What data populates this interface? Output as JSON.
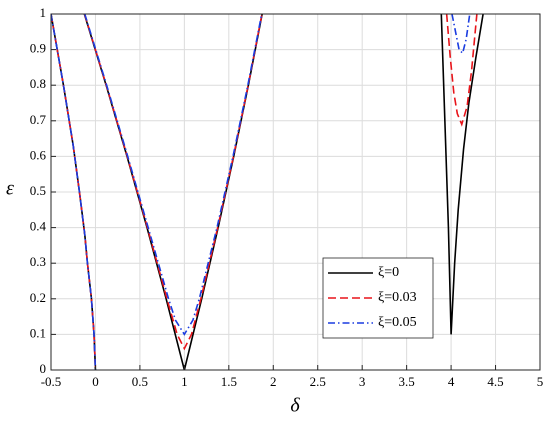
{
  "chart_data": {
    "type": "line",
    "x_label": "δ",
    "y_label": "ε",
    "xlim": [
      -0.5,
      5
    ],
    "ylim": [
      0,
      1
    ],
    "xticks": [
      -0.5,
      0,
      0.5,
      1,
      1.5,
      2,
      2.5,
      3,
      3.5,
      4,
      4.5,
      5
    ],
    "yticks": [
      0,
      0.1,
      0.2,
      0.3,
      0.4,
      0.5,
      0.6,
      0.7,
      0.8,
      0.9,
      1
    ],
    "grid": true,
    "legend": "lower right",
    "series": [
      {
        "name": "ξ=0",
        "color": "#000000",
        "dash": "solid",
        "x": [
          -0.5,
          -0.36,
          -0.25,
          -0.18,
          -0.12,
          -0.09,
          -0.045,
          -0.016,
          0,
          null,
          -0.125,
          0.12,
          0.355,
          0.58,
          0.795,
          1,
          1.195,
          1.38,
          1.555,
          1.72,
          1.875,
          null,
          3.89,
          3.93,
          3.97,
          4,
          4.04,
          4.08,
          4.14,
          4.2,
          4.28,
          4.36
        ],
        "values": [
          1,
          0.8,
          0.63,
          0.5,
          0.38,
          0.3,
          0.2,
          0.1,
          0,
          null,
          1,
          0.8,
          0.6,
          0.4,
          0.2,
          0,
          0.2,
          0.4,
          0.6,
          0.8,
          1,
          null,
          1,
          0.7,
          0.4,
          0.1,
          0.3,
          0.45,
          0.62,
          0.75,
          0.88,
          1
        ]
      },
      {
        "name": "ξ=0.03",
        "color": "#e8141a",
        "dash": "dashed",
        "x": [
          -0.5,
          -0.36,
          -0.25,
          -0.18,
          -0.12,
          -0.09,
          -0.045,
          -0.016,
          0,
          null,
          -0.123,
          0.122,
          0.358,
          0.585,
          0.804,
          0.919,
          1,
          1.08,
          1.186,
          1.375,
          1.552,
          1.718,
          1.873,
          null,
          3.95,
          3.99,
          4.03,
          4.07,
          4.12,
          4.18,
          4.23,
          4.29
        ],
        "values": [
          1,
          0.8,
          0.63,
          0.5,
          0.38,
          0.3,
          0.2,
          0.1,
          0,
          null,
          1,
          0.8,
          0.6,
          0.4,
          0.2,
          0.1,
          0.06,
          0.1,
          0.2,
          0.4,
          0.6,
          0.8,
          1,
          null,
          1,
          0.88,
          0.78,
          0.72,
          0.69,
          0.74,
          0.84,
          1
        ]
      },
      {
        "name": "ξ=0.05",
        "color": "#1a3ce0",
        "dash": "dashdot",
        "x": [
          -0.5,
          -0.36,
          -0.25,
          -0.18,
          -0.12,
          -0.09,
          -0.045,
          -0.016,
          0,
          null,
          -0.12,
          0.126,
          0.363,
          0.593,
          0.822,
          0.9,
          1,
          1.096,
          1.168,
          1.367,
          1.547,
          1.714,
          1.87,
          null,
          4.01,
          4.05,
          4.09,
          4.13,
          4.17,
          4.21
        ],
        "values": [
          1,
          0.8,
          0.63,
          0.5,
          0.38,
          0.3,
          0.2,
          0.1,
          0,
          null,
          1,
          0.8,
          0.6,
          0.4,
          0.2,
          0.14,
          0.1,
          0.14,
          0.2,
          0.4,
          0.6,
          0.8,
          1,
          null,
          1,
          0.95,
          0.9,
          0.89,
          0.93,
          1
        ]
      }
    ]
  }
}
